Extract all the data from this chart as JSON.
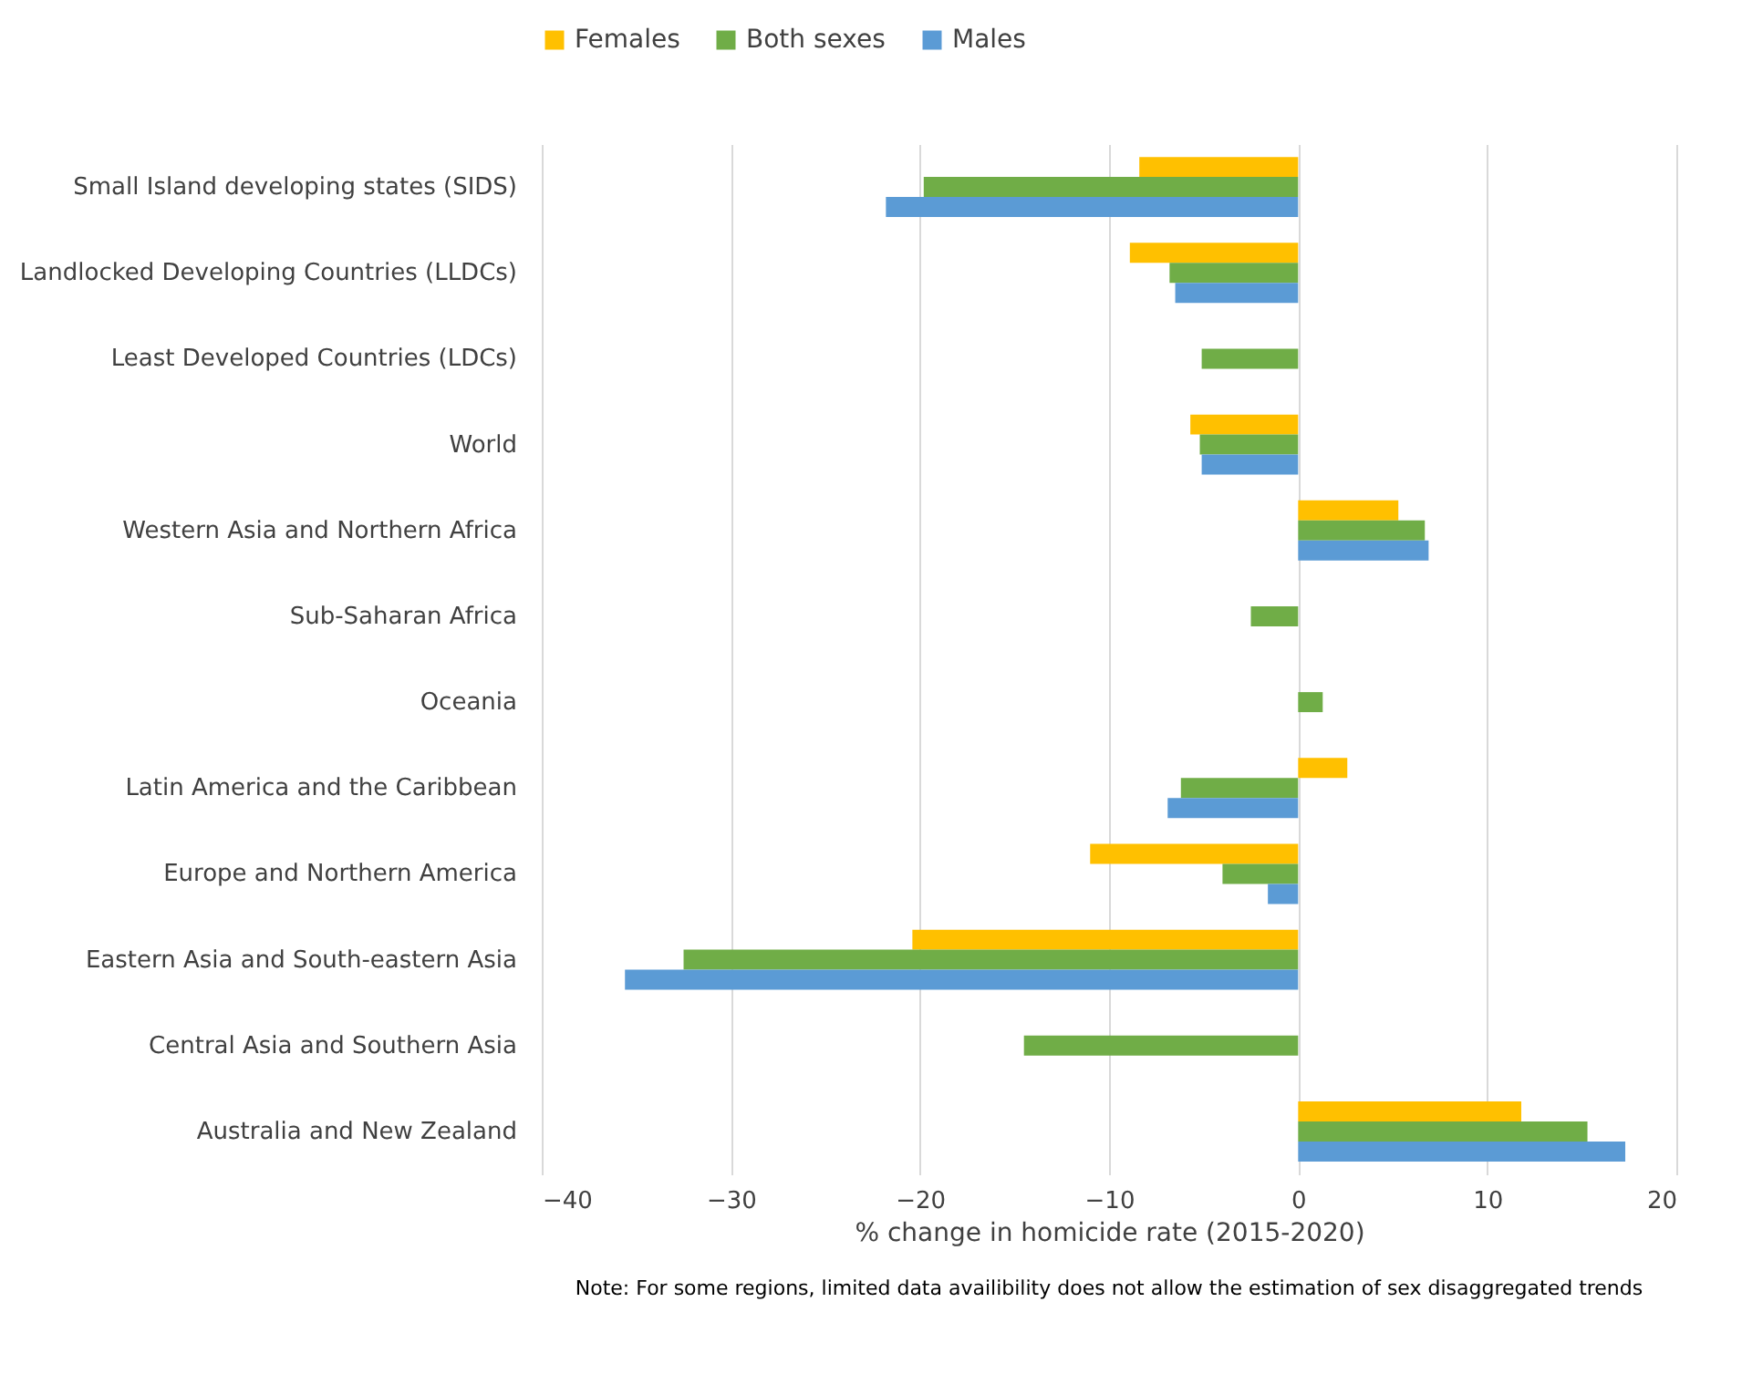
{
  "chart_data": {
    "type": "bar",
    "orientation": "horizontal",
    "xlabel": "% change in homicide rate (2015-2020)",
    "categories": [
      "Small Island developing states (SIDS)",
      "Landlocked Developing Countries (LLDCs)",
      "Least Developed Countries (LDCs)",
      "World",
      "Western Asia and Northern Africa",
      "Sub-Saharan Africa",
      "Oceania",
      "Latin America and the Caribbean",
      "Europe and Northern America",
      "Eastern Asia and South-eastern Asia",
      "Central Asia and Southern Asia",
      "Australia and New Zealand"
    ],
    "series": [
      {
        "name": "Females",
        "color": "#ffc000",
        "values": [
          -8.4,
          -8.9,
          null,
          -5.7,
          5.3,
          null,
          null,
          2.6,
          -11.0,
          -20.4,
          null,
          11.8
        ]
      },
      {
        "name": "Both sexes",
        "color": "#70ad47",
        "values": [
          -19.8,
          -6.8,
          -5.1,
          -5.2,
          6.7,
          -2.5,
          1.3,
          -6.2,
          -4.0,
          -32.5,
          -14.5,
          15.3
        ]
      },
      {
        "name": "Males",
        "color": "#5b9bd5",
        "values": [
          -21.8,
          -6.5,
          null,
          -5.1,
          6.9,
          null,
          null,
          -6.9,
          -1.6,
          -35.6,
          null,
          17.3
        ]
      }
    ],
    "xlim": [
      -40,
      20
    ],
    "xticks": [
      -40,
      -30,
      -20,
      -10,
      0,
      10,
      20
    ],
    "grid": "x",
    "legend": "top",
    "annotations": [
      "Note: For some regions, limited data availibility does not allow the estimation of sex disaggregated trends"
    ]
  }
}
